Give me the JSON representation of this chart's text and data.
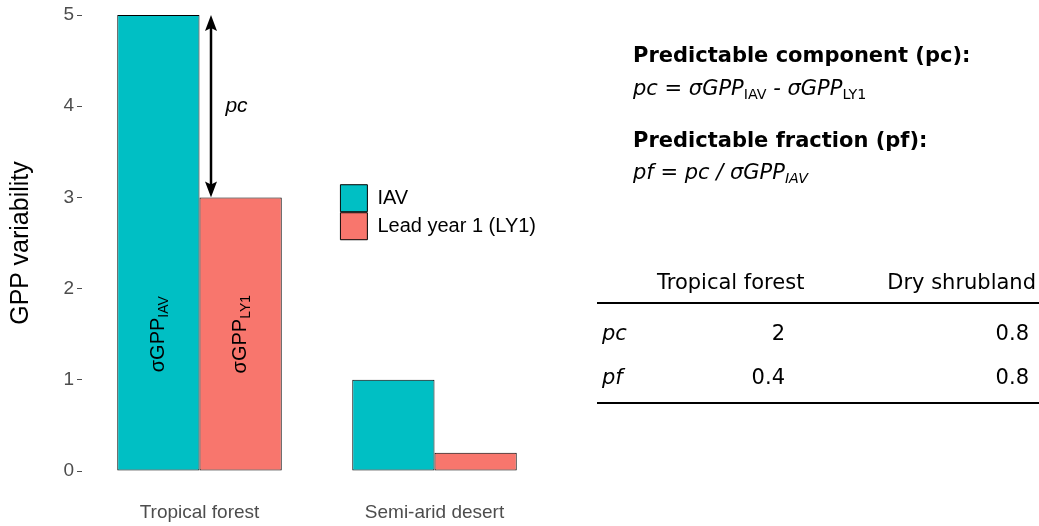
{
  "chart_data": [
    {
      "type": "bar",
      "ylabel": "GPP variability",
      "categories": [
        "Tropical forest",
        "Semi-arid desert"
      ],
      "series": [
        {
          "name": "IAV",
          "color": "#00bfc4",
          "values": [
            5,
            1
          ]
        },
        {
          "name": "Lead year 1 (LY1)",
          "color": "#f8766d",
          "values": [
            3,
            0.2
          ]
        }
      ],
      "ylim": [
        0,
        5
      ],
      "yticks": [
        0,
        1,
        2,
        3,
        4,
        5
      ],
      "legend": "right",
      "annotations": [
        {
          "text": "pc",
          "x": "Tropical forest",
          "y": 4
        },
        {
          "text": "σGPP$_{IAV}$",
          "x": "Tropical forest",
          "y": 1.5
        },
        {
          "text": "σGPP$_{LY1}$",
          "x": "Tropical forest",
          "y": 1.5
        }
      ]
    },
    {
      "type": "other",
      "annotations": [
        "Predictable component (pc):",
        "pc = σGPP$_{IAV}$ - σGPP$_{LY1}$",
        "Predictable fraction (pf):",
        "pf = pc / σGPP$_{IAV}$",
        "Tropical forest",
        "Dry shrubland",
        "pc",
        "2",
        "0.8",
        "pf",
        "0.4",
        "0.8"
      ]
    }
  ]
}
